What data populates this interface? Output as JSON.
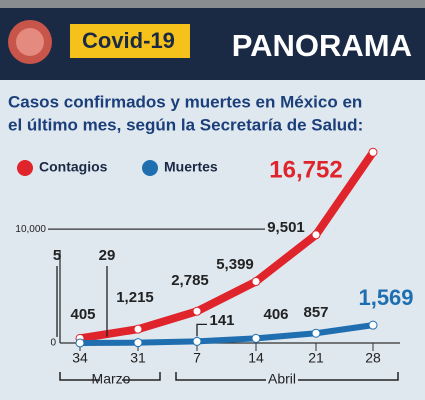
{
  "header": {
    "badge": "Covid-19",
    "title": "PANORAMA"
  },
  "chart_data": {
    "type": "line",
    "subtitle": [
      "Casos confirmados y muertes en México en",
      "el último mes, según la Secretaría de Salud:"
    ],
    "categories": [
      "34",
      "31",
      "7",
      "14",
      "21",
      "28"
    ],
    "month_labels": [
      "Marzo",
      "Abril"
    ],
    "series": [
      {
        "name": "Contagios",
        "color": "#e0242b",
        "values": [
          405,
          1215,
          2785,
          5399,
          9501,
          16752
        ],
        "value_labels": [
          "405",
          "1,215",
          "2,785",
          "5,399",
          "9,501",
          "16,752"
        ]
      },
      {
        "name": "Muertes",
        "color": "#1f6fb0",
        "values": [
          5,
          29,
          141,
          406,
          857,
          1569
        ],
        "value_labels": [
          "5",
          "29",
          "141",
          "406",
          "857",
          "1,569"
        ]
      }
    ],
    "ylim": [
      0,
      18000
    ],
    "yticks": [
      0,
      {
        "value": 10000,
        "label": "10,000"
      }
    ]
  }
}
